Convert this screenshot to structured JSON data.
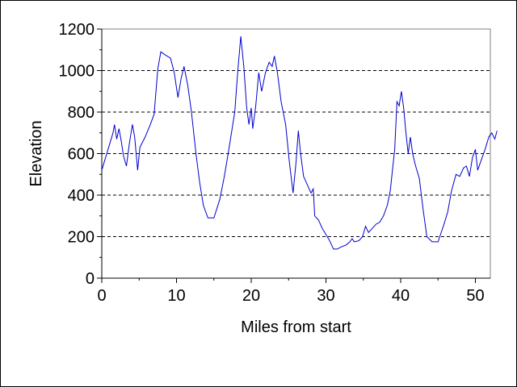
{
  "chart_data": {
    "type": "line",
    "title": "",
    "xlabel": "Miles from start",
    "ylabel": "Elevation",
    "xlim": [
      0,
      52
    ],
    "ylim": [
      0,
      1200
    ],
    "x_ticks": [
      0,
      10,
      20,
      30,
      40,
      50
    ],
    "y_ticks": [
      0,
      200,
      400,
      600,
      800,
      1000,
      1200
    ],
    "x_tick_labels": [
      "0",
      "10",
      "20",
      "30",
      "40",
      "50"
    ],
    "y_tick_labels": [
      "0",
      "200",
      "400",
      "600",
      "800",
      "1000",
      "1200"
    ],
    "grid": "horizontal dashed",
    "legend": "none",
    "line_color": "#0000cc",
    "series": [
      {
        "values": [
          [
            0.0,
            520
          ],
          [
            0.5,
            580
          ],
          [
            1.0,
            640
          ],
          [
            1.5,
            700
          ],
          [
            1.7,
            740
          ],
          [
            2.0,
            670
          ],
          [
            2.3,
            720
          ],
          [
            2.6,
            660
          ],
          [
            2.9,
            590
          ],
          [
            3.3,
            540
          ],
          [
            3.7,
            650
          ],
          [
            4.1,
            740
          ],
          [
            4.4,
            680
          ],
          [
            4.8,
            520
          ],
          [
            5.1,
            630
          ],
          [
            5.8,
            680
          ],
          [
            6.5,
            740
          ],
          [
            7.0,
            790
          ],
          [
            7.5,
            1010
          ],
          [
            7.9,
            1090
          ],
          [
            8.5,
            1075
          ],
          [
            9.2,
            1060
          ],
          [
            9.7,
            990
          ],
          [
            10.2,
            870
          ],
          [
            10.6,
            960
          ],
          [
            11.0,
            1020
          ],
          [
            11.5,
            930
          ],
          [
            12.0,
            800
          ],
          [
            12.6,
            600
          ],
          [
            13.1,
            460
          ],
          [
            13.6,
            350
          ],
          [
            14.2,
            290
          ],
          [
            15.0,
            290
          ],
          [
            15.8,
            380
          ],
          [
            16.4,
            490
          ],
          [
            17.0,
            620
          ],
          [
            17.8,
            800
          ],
          [
            18.2,
            1000
          ],
          [
            18.6,
            1165
          ],
          [
            19.0,
            1020
          ],
          [
            19.4,
            820
          ],
          [
            19.7,
            740
          ],
          [
            20.0,
            820
          ],
          [
            20.2,
            720
          ],
          [
            20.6,
            830
          ],
          [
            21.0,
            990
          ],
          [
            21.4,
            900
          ],
          [
            21.9,
            990
          ],
          [
            22.4,
            1040
          ],
          [
            22.8,
            1020
          ],
          [
            23.1,
            1070
          ],
          [
            23.5,
            990
          ],
          [
            24.0,
            850
          ],
          [
            24.6,
            740
          ],
          [
            25.1,
            560
          ],
          [
            25.6,
            410
          ],
          [
            26.0,
            560
          ],
          [
            26.3,
            710
          ],
          [
            26.6,
            600
          ],
          [
            27.0,
            490
          ],
          [
            27.5,
            450
          ],
          [
            28.0,
            410
          ],
          [
            28.3,
            430
          ],
          [
            28.5,
            300
          ],
          [
            29.0,
            280
          ],
          [
            29.5,
            240
          ],
          [
            30.0,
            210
          ],
          [
            30.5,
            180
          ],
          [
            31.0,
            140
          ],
          [
            31.5,
            140
          ],
          [
            32.0,
            150
          ],
          [
            32.7,
            160
          ],
          [
            33.2,
            175
          ],
          [
            33.5,
            190
          ],
          [
            33.8,
            175
          ],
          [
            34.4,
            180
          ],
          [
            34.9,
            200
          ],
          [
            35.3,
            250
          ],
          [
            35.7,
            220
          ],
          [
            36.2,
            240
          ],
          [
            36.7,
            260
          ],
          [
            37.2,
            270
          ],
          [
            37.7,
            300
          ],
          [
            38.2,
            350
          ],
          [
            38.6,
            420
          ],
          [
            38.9,
            520
          ],
          [
            39.2,
            620
          ],
          [
            39.5,
            850
          ],
          [
            39.8,
            830
          ],
          [
            40.1,
            900
          ],
          [
            40.4,
            820
          ],
          [
            40.7,
            700
          ],
          [
            41.0,
            600
          ],
          [
            41.3,
            680
          ],
          [
            41.6,
            600
          ],
          [
            42.0,
            540
          ],
          [
            42.5,
            480
          ],
          [
            43.0,
            330
          ],
          [
            43.5,
            200
          ],
          [
            44.2,
            175
          ],
          [
            45.0,
            175
          ],
          [
            45.8,
            260
          ],
          [
            46.3,
            320
          ],
          [
            46.8,
            420
          ],
          [
            47.4,
            500
          ],
          [
            47.9,
            490
          ],
          [
            48.4,
            530
          ],
          [
            48.8,
            540
          ],
          [
            49.2,
            490
          ],
          [
            49.6,
            580
          ],
          [
            50.0,
            620
          ],
          [
            50.3,
            520
          ],
          [
            50.8,
            570
          ],
          [
            51.3,
            620
          ],
          [
            51.8,
            680
          ],
          [
            52.2,
            700
          ],
          [
            52.6,
            670
          ],
          [
            52.9,
            710
          ]
        ]
      }
    ]
  }
}
